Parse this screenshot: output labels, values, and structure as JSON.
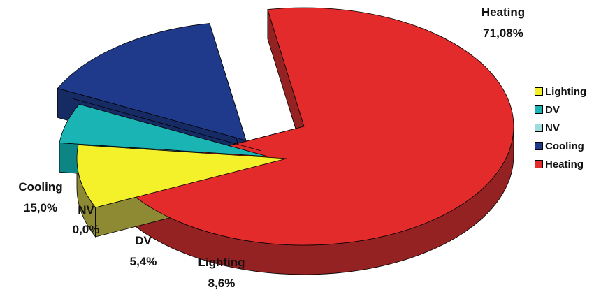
{
  "chart_data": {
    "type": "pie",
    "style": "3d-exploded",
    "slices": [
      {
        "name": "Heating",
        "value": 71.08,
        "label": "71,08%",
        "color": "#e32b2b",
        "side": "#952222"
      },
      {
        "name": "Lighting",
        "value": 8.6,
        "label": "8,6%",
        "color": "#f4f02a",
        "side": "#8e8a34"
      },
      {
        "name": "DV",
        "value": 5.4,
        "label": "5,4%",
        "color": "#1ab4b4",
        "side": "#0e8585"
      },
      {
        "name": "NV",
        "value": 0.0,
        "label": "0,0%",
        "color": "#9fdcdc",
        "side": "#6aa9a9"
      },
      {
        "name": "Cooling",
        "value": 15.0,
        "label": "15,0%",
        "color": "#1f3a8a",
        "side": "#162b64"
      }
    ],
    "legend": {
      "position": "right",
      "order": [
        "Lighting",
        "DV",
        "NV",
        "Cooling",
        "Heating"
      ]
    }
  }
}
